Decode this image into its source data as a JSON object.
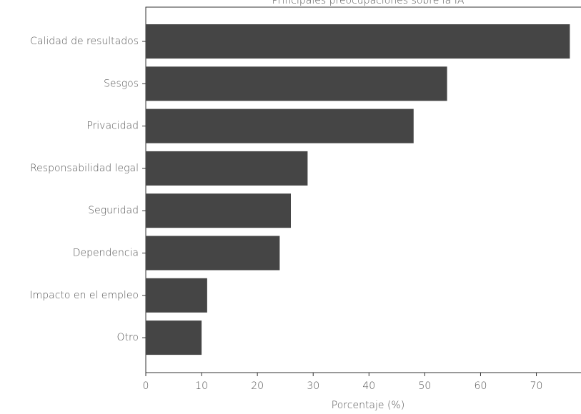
{
  "chart_data": {
    "type": "bar",
    "orientation": "horizontal",
    "title": "Principales preocupaciones sobre la IA",
    "xlabel": "Porcentaje (%)",
    "categories": [
      "Calidad de resultados",
      "Sesgos",
      "Privacidad",
      "Responsabilidad legal",
      "Seguridad",
      "Dependencia",
      "Impacto en el empleo",
      "Otro"
    ],
    "values": [
      76,
      54,
      48,
      29,
      26,
      24,
      11,
      10
    ],
    "color": "#454545",
    "xlim": [
      0,
      78
    ],
    "xticks": [
      0,
      10,
      20,
      30,
      40,
      50,
      60,
      70
    ]
  }
}
